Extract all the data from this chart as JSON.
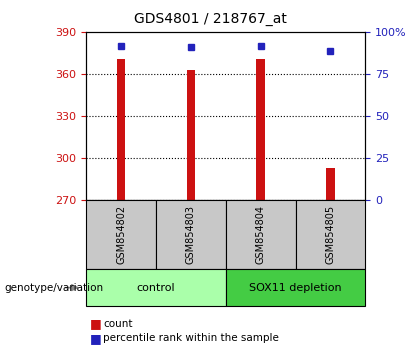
{
  "title": "GDS4801 / 218767_at",
  "samples": [
    "GSM854802",
    "GSM854803",
    "GSM854804",
    "GSM854805"
  ],
  "count_values": [
    370.5,
    363.0,
    370.5,
    292.5
  ],
  "percentile_values": [
    91.5,
    90.8,
    91.5,
    88.5
  ],
  "ylim_left": [
    270,
    390
  ],
  "ylim_right": [
    0,
    100
  ],
  "yticks_left": [
    270,
    300,
    330,
    360,
    390
  ],
  "yticks_right": [
    0,
    25,
    50,
    75,
    100
  ],
  "ytick_labels_right": [
    "0",
    "25",
    "50",
    "75",
    "100%"
  ],
  "bar_color": "#cc1111",
  "square_color": "#2222bb",
  "bar_width": 0.12,
  "left_tick_color": "#cc1111",
  "right_tick_color": "#2222bb",
  "sample_box_color": "#c8c8c8",
  "group_data": [
    {
      "label": "control",
      "start": 0,
      "end": 1,
      "color": "#aaffaa"
    },
    {
      "label": "SOX11 depletion",
      "start": 2,
      "end": 3,
      "color": "#44cc44"
    }
  ],
  "genotype_label": "genotype/variation",
  "legend_count": "count",
  "legend_percentile": "percentile rank within the sample",
  "title_fontsize": 10,
  "tick_fontsize": 8,
  "sample_fontsize": 7,
  "group_fontsize": 8,
  "legend_fontsize": 7.5
}
